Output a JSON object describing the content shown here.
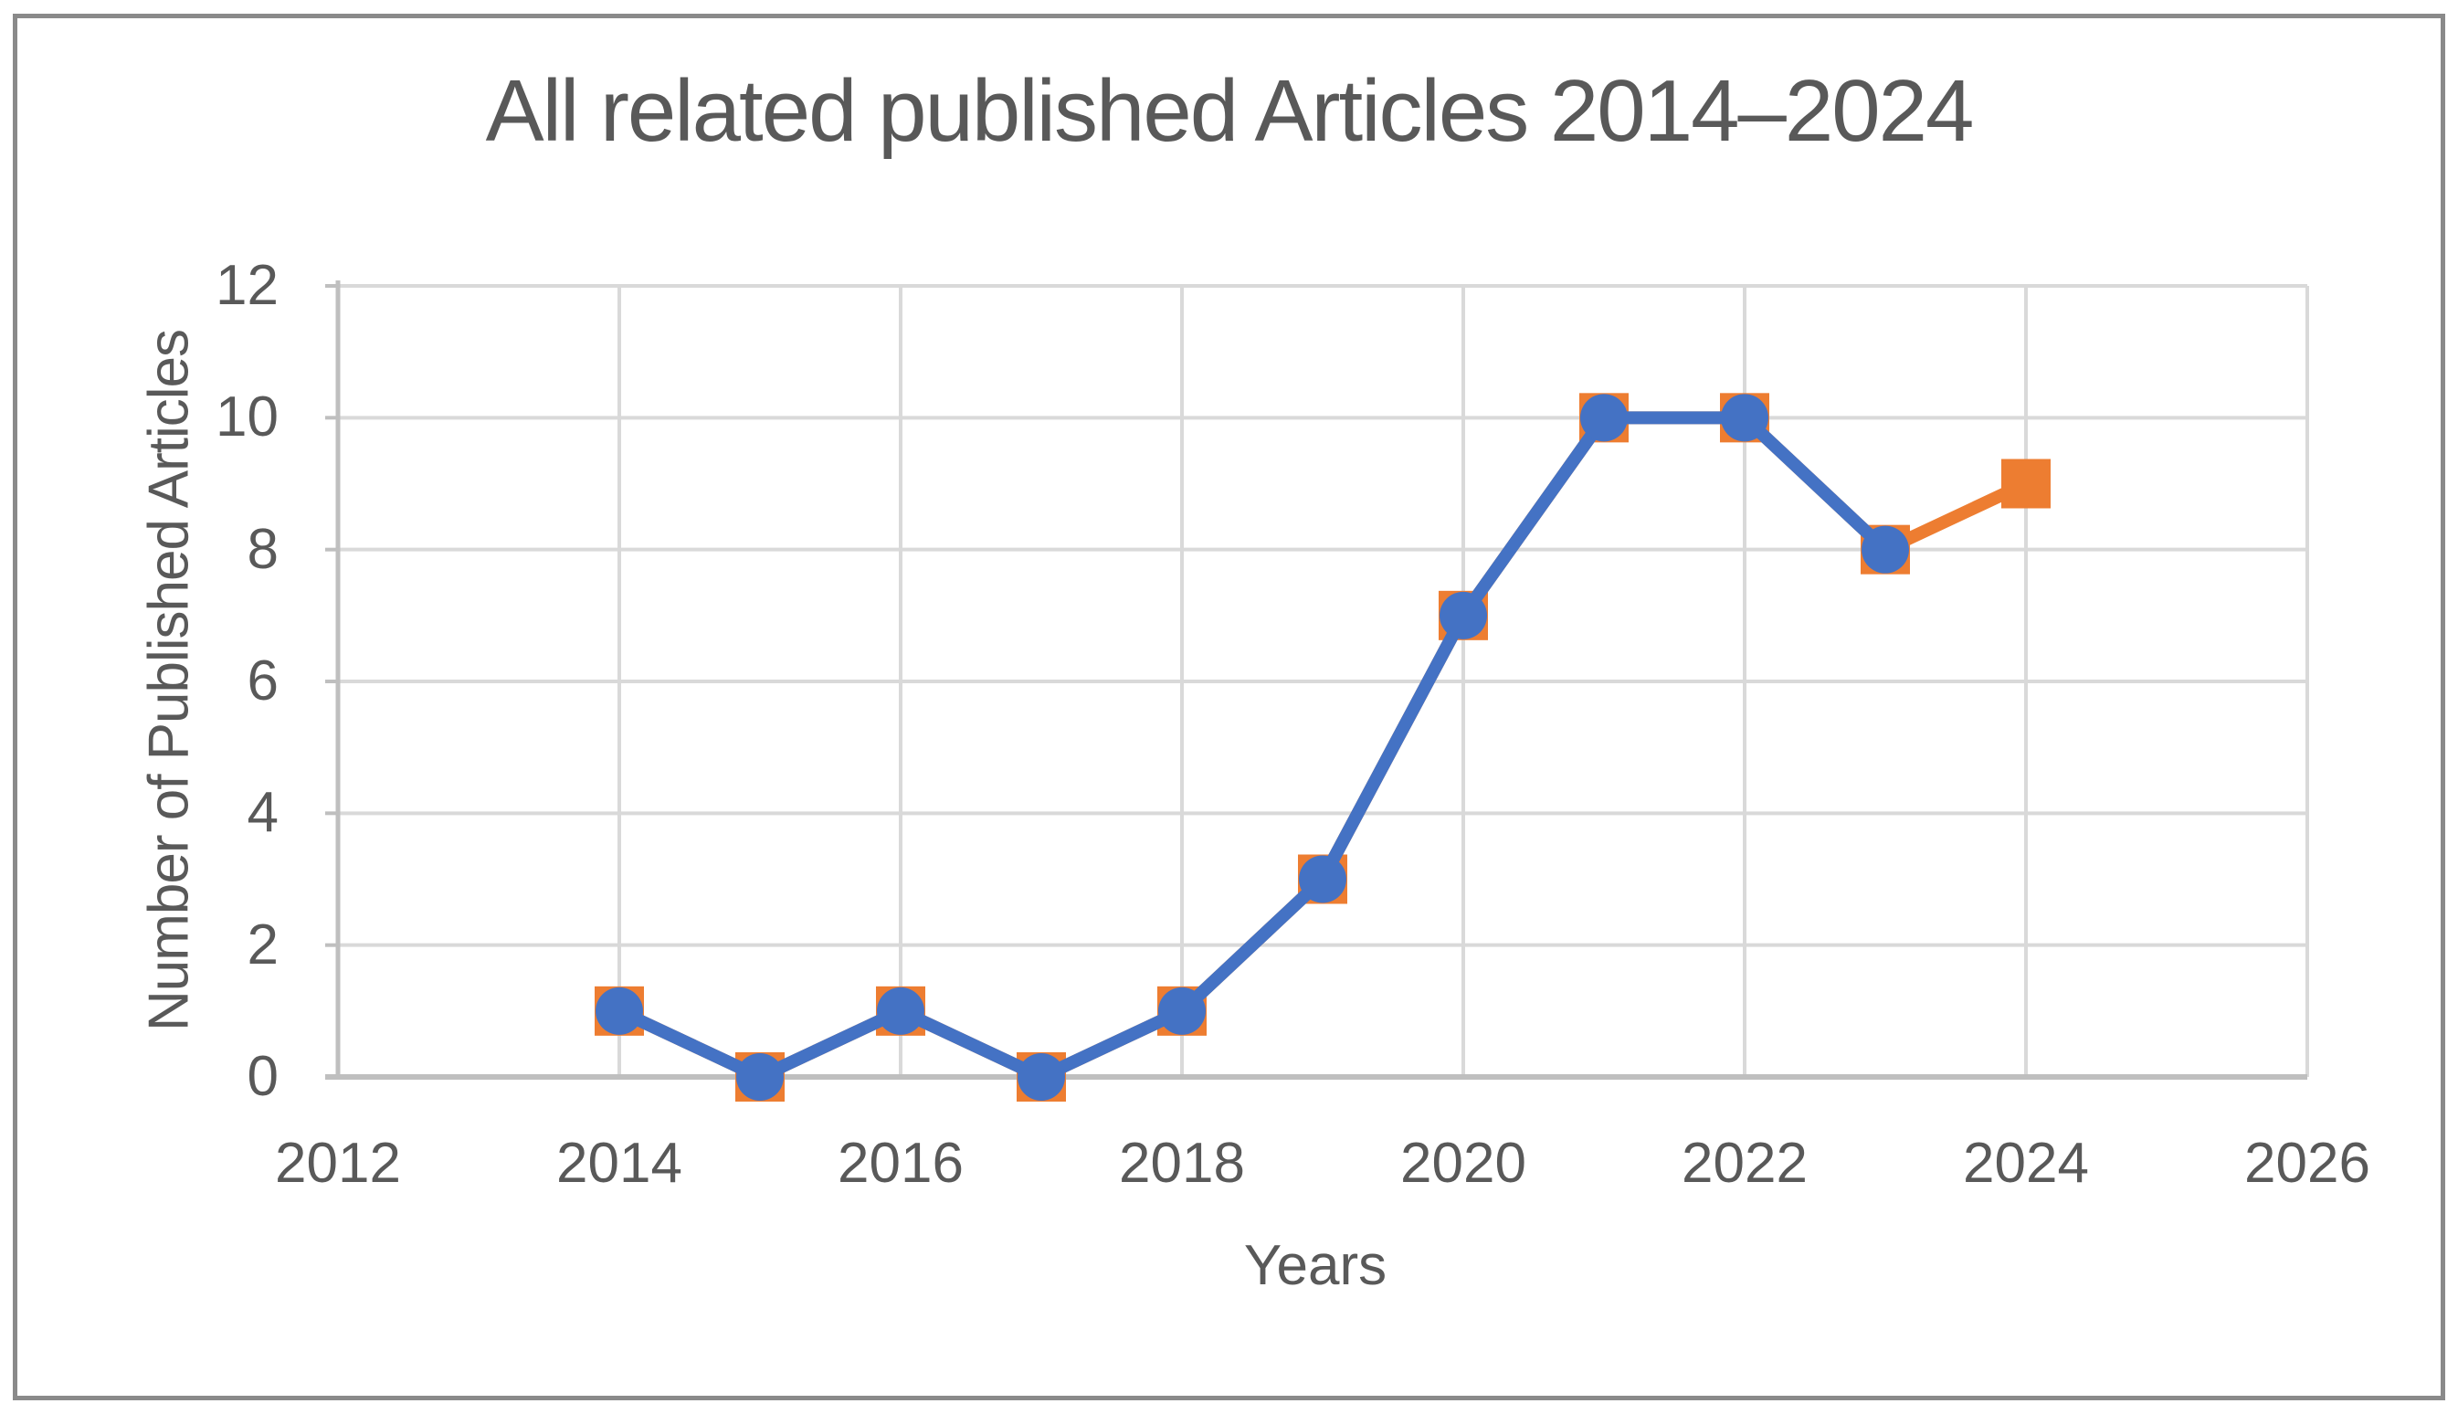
{
  "frame": {
    "border_color": "#8a8a8a",
    "background": "#ffffff"
  },
  "chart_data": {
    "type": "line",
    "title": "All related published Articles 2014–2024",
    "xlabel": "Years",
    "ylabel": "Number of Published Articles",
    "xlim": [
      2012,
      2026
    ],
    "ylim": [
      0,
      12
    ],
    "x_ticks": [
      "2012",
      "2014",
      "2016",
      "2018",
      "2020",
      "2022",
      "2024",
      "2026"
    ],
    "y_ticks": [
      "0",
      "2",
      "4",
      "6",
      "8",
      "10",
      "12"
    ],
    "grid": true,
    "legend": "none",
    "colors": {
      "grid": "#d9d9d9",
      "axis": "#bfbfbf",
      "text": "#595959",
      "blue_series": "#4472c4",
      "orange_series": "#ed7d31"
    },
    "series": [
      {
        "name": "orange-square-series",
        "color": "#ed7d31",
        "marker": "square",
        "x": [
          2014,
          2015,
          2016,
          2017,
          2018,
          2019,
          2020,
          2021,
          2022,
          2023,
          2024
        ],
        "values": [
          1,
          0,
          1,
          0,
          1,
          3,
          7,
          10,
          10,
          8,
          9
        ]
      },
      {
        "name": "blue-circle-series",
        "color": "#4472c4",
        "marker": "circle",
        "x": [
          2014,
          2015,
          2016,
          2017,
          2018,
          2019,
          2020,
          2021,
          2022,
          2023
        ],
        "values": [
          1,
          0,
          1,
          0,
          1,
          3,
          7,
          10,
          10,
          8
        ]
      }
    ]
  }
}
